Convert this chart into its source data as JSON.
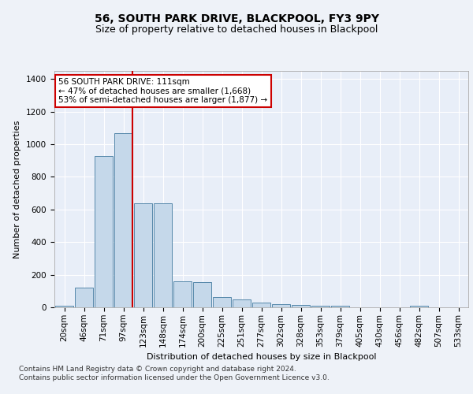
{
  "title": "56, SOUTH PARK DRIVE, BLACKPOOL, FY3 9PY",
  "subtitle": "Size of property relative to detached houses in Blackpool",
  "xlabel": "Distribution of detached houses by size in Blackpool",
  "ylabel": "Number of detached properties",
  "categories": [
    "20sqm",
    "46sqm",
    "71sqm",
    "97sqm",
    "123sqm",
    "148sqm",
    "174sqm",
    "200sqm",
    "225sqm",
    "251sqm",
    "277sqm",
    "302sqm",
    "328sqm",
    "353sqm",
    "379sqm",
    "405sqm",
    "430sqm",
    "456sqm",
    "482sqm",
    "507sqm",
    "533sqm"
  ],
  "values": [
    12,
    120,
    930,
    1070,
    640,
    640,
    160,
    155,
    65,
    50,
    30,
    20,
    15,
    10,
    8,
    0,
    0,
    0,
    8,
    0,
    0
  ],
  "bar_color": "#c5d8ea",
  "bar_edge_color": "#5588aa",
  "red_line_color": "#cc0000",
  "annotation_text": "56 SOUTH PARK DRIVE: 111sqm\n← 47% of detached houses are smaller (1,668)\n53% of semi-detached houses are larger (1,877) →",
  "annotation_box_color": "#ffffff",
  "annotation_box_edge_color": "#cc0000",
  "ylim": [
    0,
    1450
  ],
  "yticks": [
    0,
    200,
    400,
    600,
    800,
    1000,
    1200,
    1400
  ],
  "bg_color": "#eef2f8",
  "plot_bg_color": "#e8eef8",
  "grid_color": "#ffffff",
  "footer_line1": "Contains HM Land Registry data © Crown copyright and database right 2024.",
  "footer_line2": "Contains public sector information licensed under the Open Government Licence v3.0.",
  "title_fontsize": 10,
  "subtitle_fontsize": 9,
  "axis_label_fontsize": 8,
  "tick_fontsize": 7.5,
  "annotation_fontsize": 7.5,
  "footer_fontsize": 6.5
}
